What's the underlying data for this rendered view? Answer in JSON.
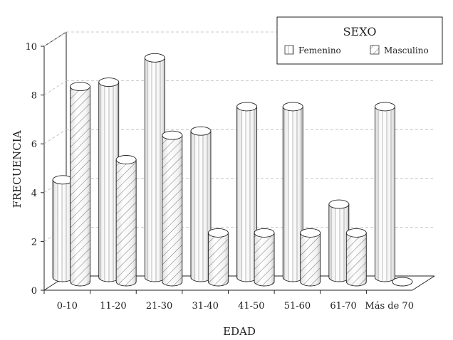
{
  "chart_data": {
    "type": "bar",
    "title": "",
    "xlabel": "EDAD",
    "ylabel": "FRECUENCIA",
    "ylim": [
      0,
      10
    ],
    "yticks": [
      "0",
      "2",
      "4",
      "6",
      "8",
      "10"
    ],
    "grid": true,
    "legend": {
      "title": "SEXO",
      "placement": "top-right"
    },
    "categories": [
      "0-10",
      "11-20",
      "21-30",
      "31-40",
      "41-50",
      "51-60",
      "61-70",
      "Más de 70"
    ],
    "series": [
      {
        "name": "Femenino",
        "pattern": "vertical-lines",
        "values": [
          4,
          8,
          9,
          6,
          7,
          7,
          3,
          7
        ]
      },
      {
        "name": "Masculino",
        "pattern": "diagonal-hatch",
        "values": [
          8,
          5,
          6,
          2,
          2,
          2,
          2,
          0
        ]
      }
    ]
  }
}
